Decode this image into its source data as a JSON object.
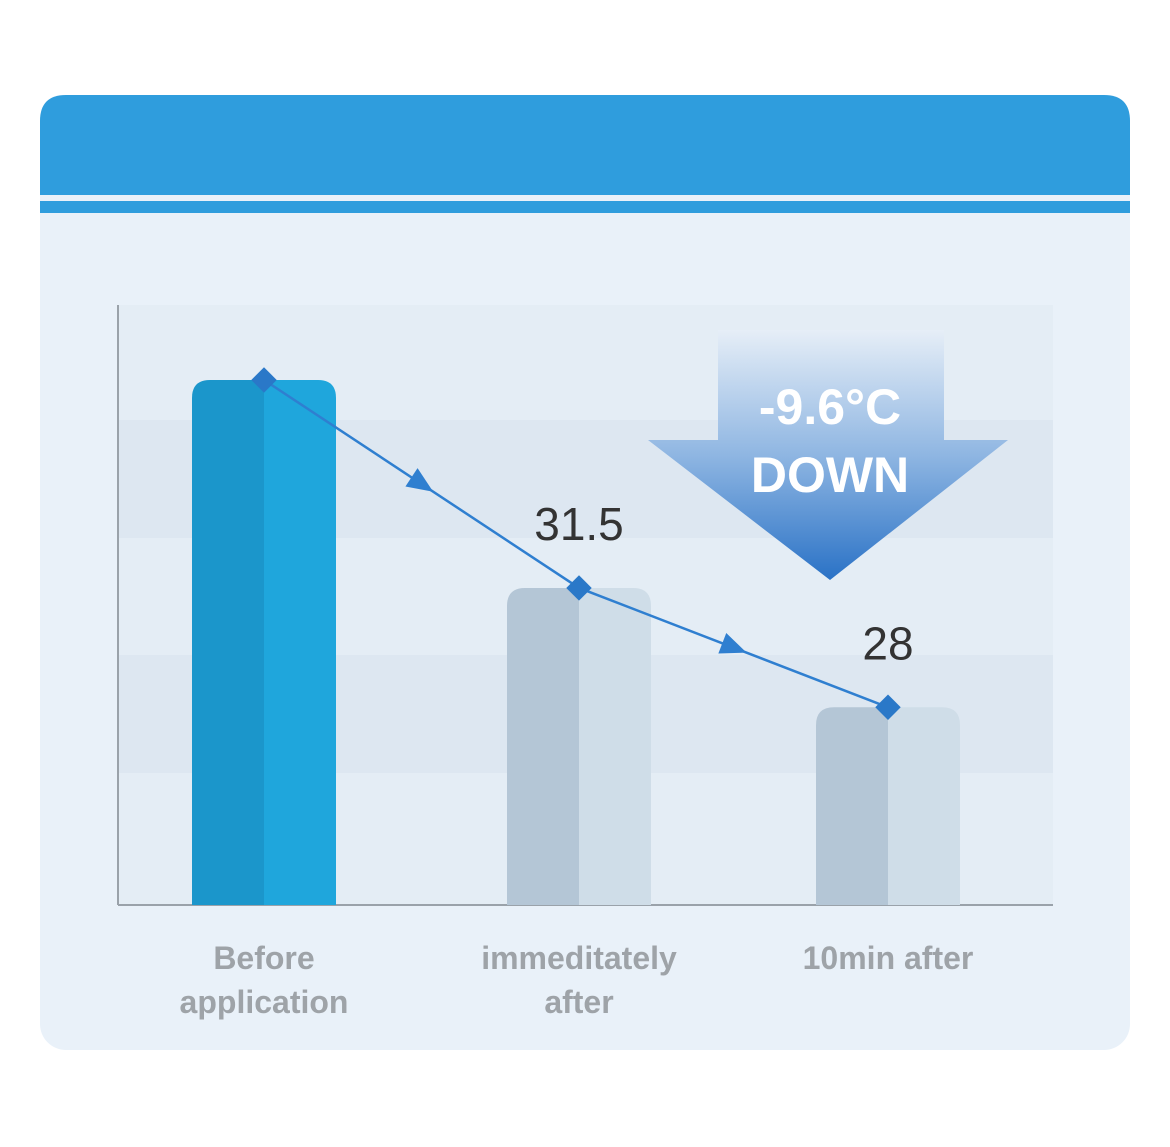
{
  "chart_data": {
    "type": "bar",
    "categories": [
      "Before application",
      "immeditately after",
      "10min after"
    ],
    "values": [
      37.6,
      31.5,
      28
    ],
    "colors": [
      "#1fa6dc",
      "#cfdde8",
      "#cfdde8"
    ],
    "line_color": "#2f7fd0",
    "ylim": [
      22.2,
      39.8
    ],
    "annotation": [
      "-9.6°C",
      "DOWN"
    ]
  }
}
